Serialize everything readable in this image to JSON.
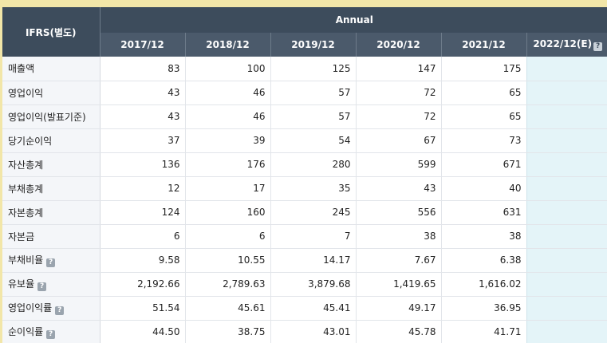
{
  "header": {
    "corner_label": "IFRS(별도)",
    "group_label": "Annual",
    "periods": [
      "2017/12",
      "2018/12",
      "2019/12",
      "2020/12",
      "2021/12",
      "2022/12(E)"
    ]
  },
  "help_glyph": "?",
  "rows": [
    {
      "label": "매출액",
      "help": false,
      "values": [
        "83",
        "100",
        "125",
        "147",
        "175",
        ""
      ]
    },
    {
      "label": "영업이익",
      "help": false,
      "values": [
        "43",
        "46",
        "57",
        "72",
        "65",
        ""
      ]
    },
    {
      "label": "영업이익(발표기준)",
      "help": false,
      "values": [
        "43",
        "46",
        "57",
        "72",
        "65",
        ""
      ]
    },
    {
      "label": "당기순이익",
      "help": false,
      "values": [
        "37",
        "39",
        "54",
        "67",
        "73",
        ""
      ]
    },
    {
      "label": "자산총계",
      "help": false,
      "values": [
        "136",
        "176",
        "280",
        "599",
        "671",
        ""
      ]
    },
    {
      "label": "부채총계",
      "help": false,
      "values": [
        "12",
        "17",
        "35",
        "43",
        "40",
        ""
      ]
    },
    {
      "label": "자본총계",
      "help": false,
      "values": [
        "124",
        "160",
        "245",
        "556",
        "631",
        ""
      ]
    },
    {
      "label": "자본금",
      "help": false,
      "values": [
        "6",
        "6",
        "7",
        "38",
        "38",
        ""
      ]
    },
    {
      "label": "부채비율",
      "help": true,
      "values": [
        "9.58",
        "10.55",
        "14.17",
        "7.67",
        "6.38",
        ""
      ]
    },
    {
      "label": "유보율",
      "help": true,
      "values": [
        "2,192.66",
        "2,789.63",
        "3,879.68",
        "1,419.65",
        "1,616.02",
        ""
      ]
    },
    {
      "label": "영업이익률",
      "help": true,
      "values": [
        "51.54",
        "45.61",
        "45.41",
        "49.17",
        "36.95",
        ""
      ]
    },
    {
      "label": "순이익률",
      "help": true,
      "values": [
        "44.50",
        "38.75",
        "43.01",
        "45.78",
        "41.71",
        ""
      ]
    }
  ],
  "colors": {
    "header": "#3d4c5c",
    "estimate_column": "#e4f4f8",
    "border": "#f2e6a8"
  }
}
